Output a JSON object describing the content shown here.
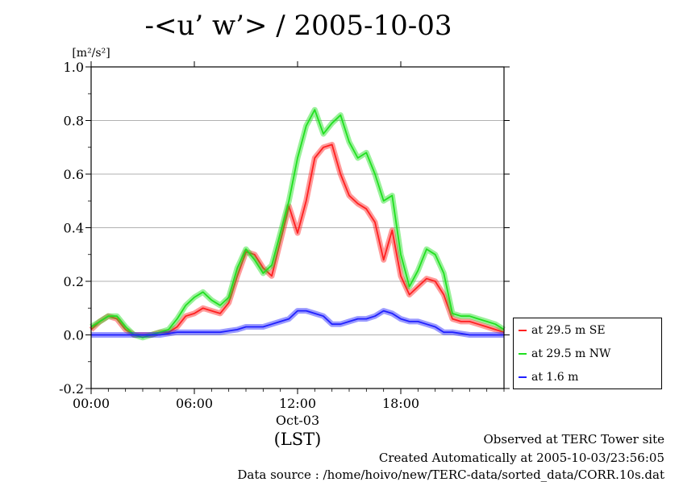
{
  "title": "-<u’ w’> / 2005-10-03",
  "footer": {
    "site": "Observed at TERC Tower site",
    "created": "Created Automatically at 2005-10-03/23:56:05",
    "source": "Data source : /home/hoivo/new/TERC-data/sorted_data/CORR.10s.dat"
  },
  "chart_data": {
    "type": "line",
    "ylabel": "[m²/s²]",
    "xlabel": "(LST)",
    "date_label": "Oct-03",
    "xlim": [
      0,
      24
    ],
    "ylim": [
      -0.2,
      1.0
    ],
    "yticks": [
      -0.2,
      0.0,
      0.2,
      0.4,
      0.6,
      0.8,
      1.0
    ],
    "ytick_labels": [
      "-0.2",
      "0.0",
      "0.2",
      "0.4",
      "0.6",
      "0.8",
      "1.0"
    ],
    "xticks": [
      0,
      6,
      12,
      18
    ],
    "xtick_labels": [
      "00:00",
      "06:00",
      "12:00",
      "18:00"
    ],
    "grid": true,
    "legend_position": "right",
    "series": [
      {
        "name": "at 29.5 m SE",
        "color": "#ff2020",
        "x": [
          0,
          0.5,
          1,
          1.5,
          2,
          2.5,
          3,
          3.5,
          4,
          4.5,
          5,
          5.5,
          6,
          6.5,
          7,
          7.5,
          8,
          8.5,
          9,
          9.5,
          10,
          10.5,
          11,
          11.5,
          12,
          12.5,
          13,
          13.5,
          14,
          14.5,
          15,
          15.5,
          16,
          16.5,
          17,
          17.5,
          18,
          18.5,
          19,
          19.5,
          20,
          20.5,
          21,
          21.5,
          22,
          22.5,
          23,
          23.5,
          24
        ],
        "y": [
          0.02,
          0.05,
          0.07,
          0.06,
          0.02,
          0.0,
          0.0,
          0.0,
          0.01,
          0.01,
          0.03,
          0.07,
          0.08,
          0.1,
          0.09,
          0.08,
          0.12,
          0.22,
          0.31,
          0.3,
          0.25,
          0.22,
          0.35,
          0.48,
          0.38,
          0.5,
          0.66,
          0.7,
          0.71,
          0.6,
          0.52,
          0.49,
          0.47,
          0.42,
          0.28,
          0.39,
          0.22,
          0.15,
          0.18,
          0.21,
          0.2,
          0.15,
          0.06,
          0.05,
          0.05,
          0.04,
          0.03,
          0.02,
          0.01
        ]
      },
      {
        "name": "at 29.5 m NW",
        "color": "#20e020",
        "x": [
          0,
          0.5,
          1,
          1.5,
          2,
          2.5,
          3,
          3.5,
          4,
          4.5,
          5,
          5.5,
          6,
          6.5,
          7,
          7.5,
          8,
          8.5,
          9,
          9.5,
          10,
          10.5,
          11,
          11.5,
          12,
          12.5,
          13,
          13.5,
          14,
          14.5,
          15,
          15.5,
          16,
          16.5,
          17,
          17.5,
          18,
          18.5,
          19,
          19.5,
          20,
          20.5,
          21,
          21.5,
          22,
          22.5,
          23,
          23.5,
          24
        ],
        "y": [
          0.03,
          0.05,
          0.07,
          0.07,
          0.03,
          0.0,
          -0.01,
          0.0,
          0.01,
          0.02,
          0.06,
          0.11,
          0.14,
          0.16,
          0.13,
          0.11,
          0.14,
          0.25,
          0.32,
          0.28,
          0.23,
          0.26,
          0.38,
          0.5,
          0.66,
          0.78,
          0.84,
          0.75,
          0.79,
          0.82,
          0.72,
          0.66,
          0.68,
          0.6,
          0.5,
          0.52,
          0.3,
          0.18,
          0.24,
          0.32,
          0.3,
          0.23,
          0.08,
          0.07,
          0.07,
          0.06,
          0.05,
          0.04,
          0.02
        ]
      },
      {
        "name": "at 1.6 m",
        "color": "#2020ff",
        "x": [
          0,
          0.5,
          1,
          1.5,
          2,
          2.5,
          3,
          3.5,
          4,
          4.5,
          5,
          5.5,
          6,
          6.5,
          7,
          7.5,
          8,
          8.5,
          9,
          9.5,
          10,
          10.5,
          11,
          11.5,
          12,
          12.5,
          13,
          13.5,
          14,
          14.5,
          15,
          15.5,
          16,
          16.5,
          17,
          17.5,
          18,
          18.5,
          19,
          19.5,
          20,
          20.5,
          21,
          21.5,
          22,
          22.5,
          23,
          23.5,
          24
        ],
        "y": [
          0.0,
          0.0,
          0.0,
          0.0,
          0.0,
          0.0,
          0.0,
          0.0,
          0.0,
          0.005,
          0.01,
          0.01,
          0.01,
          0.01,
          0.01,
          0.01,
          0.015,
          0.02,
          0.03,
          0.03,
          0.03,
          0.04,
          0.05,
          0.06,
          0.09,
          0.09,
          0.08,
          0.07,
          0.04,
          0.04,
          0.05,
          0.06,
          0.06,
          0.07,
          0.09,
          0.08,
          0.06,
          0.05,
          0.05,
          0.04,
          0.03,
          0.01,
          0.01,
          0.005,
          0.0,
          0.0,
          0.0,
          0.0,
          0.0
        ]
      }
    ]
  }
}
